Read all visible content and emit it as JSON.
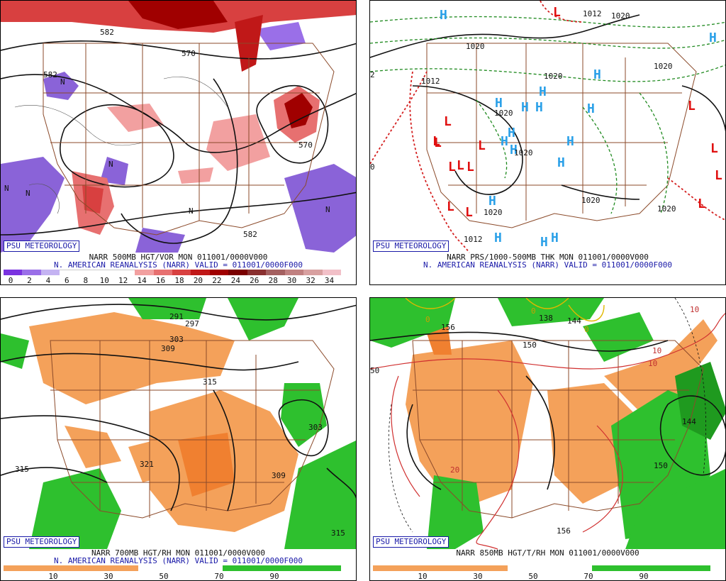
{
  "panels": [
    {
      "badge": "PSU METEOROLOGY",
      "title1": "NARR 500MB HGT/VOR MON 011001/0000V000",
      "title2": "N. AMERICAN REANALYSIS (NARR) VALID = 011001/0000F000",
      "legend_ticks": [
        "0",
        "2",
        "4",
        "6",
        "8",
        "10",
        "12",
        "14",
        "16",
        "18",
        "20",
        "22",
        "24",
        "26",
        "28",
        "30",
        "32",
        "34"
      ],
      "labels": [
        "582",
        "570",
        "582",
        "570",
        "582",
        "N",
        "N",
        "N",
        "N",
        "N",
        "N"
      ]
    },
    {
      "badge": "PSU METEOROLOGY",
      "title1": "NARR PRS/1000-500MB THK MON 011001/0000V000",
      "title2": "N. AMERICAN REANALYSIS (NARR) VALID = 011001/0000F000",
      "labels": [
        "1012",
        "1020",
        "1020",
        "1012",
        "1020",
        "1020",
        "1020",
        "1020",
        "1012",
        "1020",
        "1020",
        "1020",
        "2",
        "0"
      ],
      "symbols_H": 17,
      "symbols_L": 14
    },
    {
      "badge": "PSU METEOROLOGY",
      "title1": "NARR 700MB HGT/RH MON 011001/0000V000",
      "title2": "N. AMERICAN REANALYSIS (NARR) VALID = 011001/0000F000",
      "legend_ticks": [
        "10",
        "30",
        "50",
        "70",
        "90"
      ],
      "labels": [
        "291",
        "297",
        "303",
        "309",
        "315",
        "303",
        "315",
        "321",
        "309",
        "315"
      ]
    },
    {
      "badge": "PSU METEOROLOGY",
      "title1": "NARR 850MB HGT/T/RH MON 011001/0000V000",
      "legend_ticks": [
        "10",
        "30",
        "50",
        "70",
        "90"
      ],
      "labels": [
        "156",
        "138",
        "144",
        "150",
        "144",
        "150",
        "156",
        "0",
        "0",
        "0",
        "10",
        "10",
        "10",
        "20",
        "50"
      ]
    }
  ],
  "colors": {
    "vort_purple": "#8a63d8",
    "vort_scale": [
      "#7a33e0",
      "#9a6fe8",
      "#c4b3f2",
      "#ffffff",
      "#ffffff",
      "#ffffff",
      "#ffffff",
      "#f2a0a0",
      "#e77070",
      "#d84040",
      "#c01818",
      "#a00000",
      "#7a0000",
      "#8a3030",
      "#a46060",
      "#c08080",
      "#d8a0a0",
      "#f2c0c8"
    ],
    "rh_dry": "#f4a15a",
    "rh_moist": "#2ec02e",
    "border_brown": "#8b4a2a",
    "blue_text": "#1a1aa8"
  }
}
